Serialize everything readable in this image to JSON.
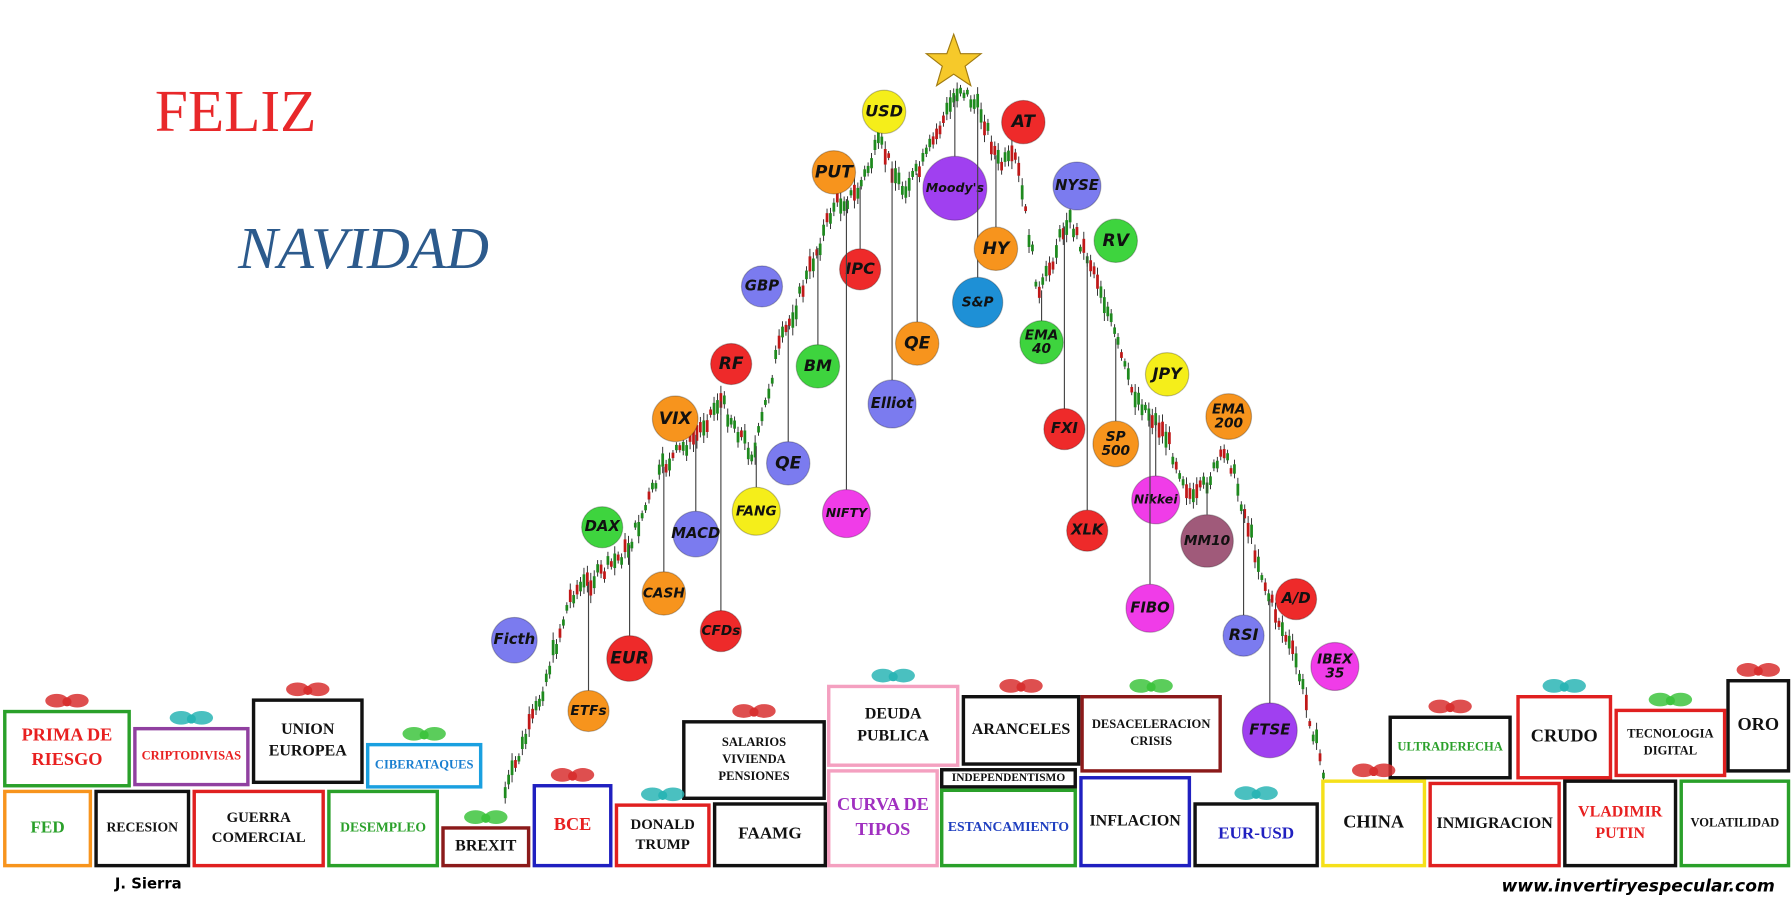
{
  "greeting": {
    "line1": "FELIZ",
    "line2": "NAVIDAD"
  },
  "ornaments": [
    {
      "lines": [
        "Ficth"
      ]
    },
    {
      "lines": [
        "ETFs"
      ]
    },
    {
      "lines": [
        "EUR"
      ]
    },
    {
      "lines": [
        "CASH"
      ]
    },
    {
      "lines": [
        "DAX"
      ]
    },
    {
      "lines": [
        "MACD"
      ]
    },
    {
      "lines": [
        "CFDs"
      ]
    },
    {
      "lines": [
        "VIX"
      ]
    },
    {
      "lines": [
        "FANG"
      ]
    },
    {
      "lines": [
        "RF"
      ]
    },
    {
      "lines": [
        "QE"
      ]
    },
    {
      "lines": [
        "GBP"
      ]
    },
    {
      "lines": [
        "BM"
      ]
    },
    {
      "lines": [
        "IPC"
      ]
    },
    {
      "lines": [
        "NIFTY"
      ]
    },
    {
      "lines": [
        "PUT"
      ]
    },
    {
      "lines": [
        "USD"
      ]
    },
    {
      "lines": [
        "Elliot"
      ]
    },
    {
      "lines": [
        "QE"
      ]
    },
    {
      "lines": [
        "Moody's"
      ]
    },
    {
      "lines": [
        "S&P"
      ]
    },
    {
      "lines": [
        "HY"
      ]
    },
    {
      "lines": [
        "AT"
      ]
    },
    {
      "lines": [
        "NYSE"
      ]
    },
    {
      "lines": [
        "EMA",
        "40"
      ]
    },
    {
      "lines": [
        "RV"
      ]
    },
    {
      "lines": [
        "FXI"
      ]
    },
    {
      "lines": [
        "XLK"
      ]
    },
    {
      "lines": [
        "SP",
        "500"
      ]
    },
    {
      "lines": [
        "JPY"
      ]
    },
    {
      "lines": [
        "Nikkei"
      ]
    },
    {
      "lines": [
        "FIBO"
      ]
    },
    {
      "lines": [
        "EMA",
        "200"
      ]
    },
    {
      "lines": [
        "MM10"
      ]
    },
    {
      "lines": [
        "RSI"
      ]
    },
    {
      "lines": [
        "A/D"
      ]
    },
    {
      "lines": [
        "FTSE"
      ]
    },
    {
      "lines": [
        "IBEX",
        "35"
      ]
    }
  ],
  "gifts": [
    {
      "lines": [
        "PRIMA DE",
        "RIESGO"
      ]
    },
    {
      "lines": [
        "CRIPTODIVISAS"
      ]
    },
    {
      "lines": [
        "UNION",
        "EUROPEA"
      ]
    },
    {
      "lines": [
        "CIBERATAQUES"
      ]
    },
    {
      "lines": [
        "SALARIOS",
        "VIVIENDA",
        "PENSIONES"
      ]
    },
    {
      "lines": [
        "DEUDA",
        "PUBLICA"
      ]
    },
    {
      "lines": [
        "ARANCELES"
      ]
    },
    {
      "lines": [
        "DESACELERACION",
        "CRISIS"
      ]
    },
    {
      "lines": [
        "INDEPENDENTISMO"
      ]
    },
    {
      "lines": [
        "ULTRADERECHA"
      ]
    },
    {
      "lines": [
        "CRUDO"
      ]
    },
    {
      "lines": [
        "TECNOLOGIA",
        "DIGITAL"
      ]
    },
    {
      "lines": [
        "ORO"
      ]
    },
    {
      "lines": [
        "FED"
      ]
    },
    {
      "lines": [
        "RECESION"
      ]
    },
    {
      "lines": [
        "GUERRA",
        "COMERCIAL"
      ]
    },
    {
      "lines": [
        "DESEMPLEO"
      ]
    },
    {
      "lines": [
        "BREXIT"
      ]
    },
    {
      "lines": [
        "BCE"
      ]
    },
    {
      "lines": [
        "DONALD",
        "TRUMP"
      ]
    },
    {
      "lines": [
        "FAAMG"
      ]
    },
    {
      "lines": [
        "CURVA DE",
        "TIPOS"
      ]
    },
    {
      "lines": [
        "ESTANCAMIENTO"
      ]
    },
    {
      "lines": [
        "INFLACION"
      ]
    },
    {
      "lines": [
        "EUR-USD"
      ]
    },
    {
      "lines": [
        "CHINA"
      ]
    },
    {
      "lines": [
        "INMIGRACION"
      ]
    },
    {
      "lines": [
        "VLADIMIR",
        "PUTIN"
      ]
    },
    {
      "lines": [
        "VOLATILIDAD"
      ]
    }
  ],
  "author": "J.  Sierra",
  "website": "www.invertiryespecular.com"
}
